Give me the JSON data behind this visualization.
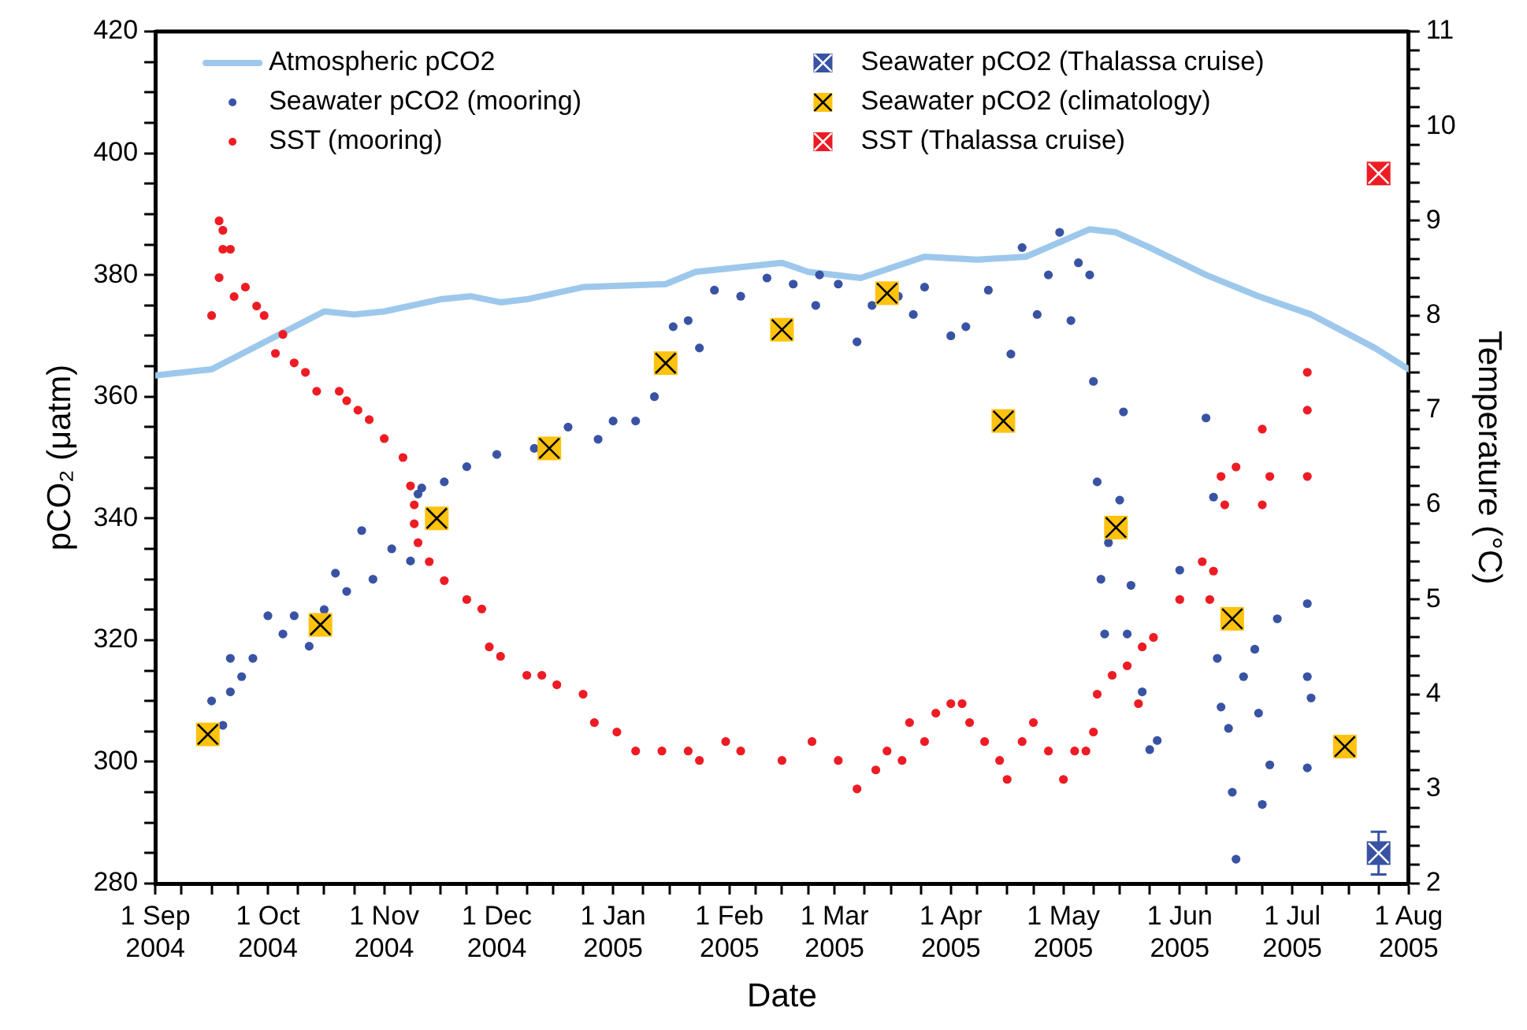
{
  "chart_data": {
    "type": "scatter",
    "xlabel": "Date",
    "ylabel": "pCO₂ (μatm)",
    "y2label": "Temperature (°C)",
    "legend": "top",
    "xlim": [
      "2004-09-01",
      "2005-08-01"
    ],
    "xticks": [
      {
        "value": "2004-09-01",
        "label": "1 Sep 2004"
      },
      {
        "value": "2004-09-08",
        "label": null
      },
      {
        "value": "2004-09-16",
        "label": null
      },
      {
        "value": "2004-09-23",
        "label": null
      },
      {
        "value": "2004-10-01",
        "label": "1 Oct 2004"
      },
      {
        "value": "2004-10-09",
        "label": null
      },
      {
        "value": "2004-10-16",
        "label": null
      },
      {
        "value": "2004-10-24",
        "label": null
      },
      {
        "value": "2004-11-01",
        "label": "1 Nov 2004"
      },
      {
        "value": "2004-11-08",
        "label": null
      },
      {
        "value": "2004-11-16",
        "label": null
      },
      {
        "value": "2004-11-23",
        "label": null
      },
      {
        "value": "2004-12-01",
        "label": "1 Dec 2004"
      },
      {
        "value": "2004-12-09",
        "label": null
      },
      {
        "value": "2004-12-16",
        "label": null
      },
      {
        "value": "2004-12-24",
        "label": null
      },
      {
        "value": "2005-01-01",
        "label": "1 Jan 2005"
      },
      {
        "value": "2005-01-09",
        "label": null
      },
      {
        "value": "2005-01-16",
        "label": null
      },
      {
        "value": "2005-01-24",
        "label": null
      },
      {
        "value": "2005-02-01",
        "label": "1 Feb 2005"
      },
      {
        "value": "2005-02-08",
        "label": null
      },
      {
        "value": "2005-02-15",
        "label": null
      },
      {
        "value": "2005-02-22",
        "label": null
      },
      {
        "value": "2005-03-01",
        "label": "1 Mar 2005"
      },
      {
        "value": "2005-03-09",
        "label": null
      },
      {
        "value": "2005-03-16",
        "label": null
      },
      {
        "value": "2005-03-24",
        "label": null
      },
      {
        "value": "2005-04-01",
        "label": "1 Apr 2005"
      },
      {
        "value": "2005-04-08",
        "label": null
      },
      {
        "value": "2005-04-16",
        "label": null
      },
      {
        "value": "2005-04-23",
        "label": null
      },
      {
        "value": "2005-05-01",
        "label": "1 May 2005"
      },
      {
        "value": "2005-05-09",
        "label": null
      },
      {
        "value": "2005-05-16",
        "label": null
      },
      {
        "value": "2005-05-24",
        "label": null
      },
      {
        "value": "2005-06-01",
        "label": "1 Jun 2005"
      },
      {
        "value": "2005-06-08",
        "label": null
      },
      {
        "value": "2005-06-16",
        "label": null
      },
      {
        "value": "2005-06-23",
        "label": null
      },
      {
        "value": "2005-07-01",
        "label": "1 Jul 2005"
      },
      {
        "value": "2005-07-09",
        "label": null
      },
      {
        "value": "2005-07-16",
        "label": null
      },
      {
        "value": "2005-07-24",
        "label": null
      },
      {
        "value": "2005-08-01",
        "label": "1 Aug 2005"
      }
    ],
    "ylim": [
      280,
      420
    ],
    "yticks": [
      280,
      {
        "value": 285,
        "label": null
      },
      {
        "value": 290,
        "label": null
      },
      {
        "value": 295,
        "label": null
      },
      300,
      {
        "value": 305,
        "label": null
      },
      {
        "value": 310,
        "label": null
      },
      {
        "value": 315,
        "label": null
      },
      320,
      {
        "value": 325,
        "label": null
      },
      {
        "value": 330,
        "label": null
      },
      {
        "value": 335,
        "label": null
      },
      340,
      {
        "value": 345,
        "label": null
      },
      {
        "value": 350,
        "label": null
      },
      {
        "value": 355,
        "label": null
      },
      360,
      {
        "value": 365,
        "label": null
      },
      {
        "value": 370,
        "label": null
      },
      {
        "value": 375,
        "label": null
      },
      380,
      {
        "value": 385,
        "label": null
      },
      {
        "value": 390,
        "label": null
      },
      {
        "value": 395,
        "label": null
      },
      400,
      {
        "value": 405,
        "label": null
      },
      {
        "value": 410,
        "label": null
      },
      {
        "value": 415,
        "label": null
      },
      420
    ],
    "y2lim": [
      2,
      11
    ],
    "y2ticks": [
      2,
      {
        "value": 2.2,
        "label": null
      },
      {
        "value": 2.4,
        "label": null
      },
      {
        "value": 2.6,
        "label": null
      },
      {
        "value": 2.8,
        "label": null
      },
      3,
      {
        "value": 3.2,
        "label": null
      },
      {
        "value": 3.4,
        "label": null
      },
      {
        "value": 3.6,
        "label": null
      },
      {
        "value": 3.8,
        "label": null
      },
      4,
      {
        "value": 4.2,
        "label": null
      },
      {
        "value": 4.4,
        "label": null
      },
      {
        "value": 4.6,
        "label": null
      },
      {
        "value": 4.8,
        "label": null
      },
      5,
      {
        "value": 5.2,
        "label": null
      },
      {
        "value": 5.4,
        "label": null
      },
      {
        "value": 5.6,
        "label": null
      },
      {
        "value": 5.8,
        "label": null
      },
      6,
      {
        "value": 6.2,
        "label": null
      },
      {
        "value": 6.4,
        "label": null
      },
      {
        "value": 6.6,
        "label": null
      },
      {
        "value": 6.8,
        "label": null
      },
      7,
      {
        "value": 7.2,
        "label": null
      },
      {
        "value": 7.4,
        "label": null
      },
      {
        "value": 7.6,
        "label": null
      },
      {
        "value": 7.8,
        "label": null
      },
      8,
      {
        "value": 8.2,
        "label": null
      },
      {
        "value": 8.4,
        "label": null
      },
      {
        "value": 8.6,
        "label": null
      },
      {
        "value": 8.8,
        "label": null
      },
      9,
      {
        "value": 9.2,
        "label": null
      },
      {
        "value": 9.4,
        "label": null
      },
      {
        "value": 9.6,
        "label": null
      },
      {
        "value": 9.8,
        "label": null
      },
      10,
      {
        "value": 10.2,
        "label": null
      },
      {
        "value": 10.4,
        "label": null
      },
      {
        "value": 10.6,
        "label": null
      },
      {
        "value": 10.8,
        "label": null
      },
      11
    ],
    "series": [
      {
        "name": "Atmospheric pCO2",
        "type": "line",
        "marker": "none",
        "color": "#9dc8ec",
        "x": [
          "2004-09-01",
          "2004-09-16",
          "2004-10-16",
          "2004-10-24",
          "2004-11-01",
          "2004-11-16",
          "2004-11-24",
          "2004-12-02",
          "2004-12-09",
          "2004-12-24",
          "2005-01-15",
          "2005-01-23",
          "2005-02-15",
          "2005-02-22",
          "2005-03-08",
          "2005-03-25",
          "2005-04-08",
          "2005-04-21",
          "2005-05-08",
          "2005-05-15",
          "2005-05-24",
          "2005-06-08",
          "2005-06-22",
          "2005-07-06",
          "2005-07-23",
          "2005-08-01"
        ],
        "values": [
          363.5,
          364.5,
          374,
          373.5,
          374,
          376,
          376.5,
          375.5,
          376,
          378,
          378.5,
          380.5,
          382,
          380.5,
          379.5,
          383,
          382.5,
          383,
          387.5,
          387,
          384.5,
          380,
          376.5,
          373.5,
          368,
          364.5
        ]
      },
      {
        "name": "Seawater pCO2 (mooring)",
        "marker": "circle",
        "color": "#3953a4",
        "x": [
          "2004-09-16",
          "2004-09-19",
          "2004-09-21",
          "2004-09-21",
          "2004-09-24",
          "2004-09-27",
          "2004-10-01",
          "2004-10-05",
          "2004-10-08",
          "2004-10-12",
          "2004-10-16",
          "2004-10-19",
          "2004-10-22",
          "2004-10-26",
          "2004-10-29",
          "2004-11-03",
          "2004-11-08",
          "2004-11-10",
          "2004-11-11",
          "2004-11-17",
          "2004-11-23",
          "2004-12-01",
          "2004-12-11",
          "2004-12-20",
          "2004-12-28",
          "2005-01-01",
          "2005-01-07",
          "2005-01-12",
          "2005-01-17",
          "2005-01-21",
          "2005-01-24",
          "2005-01-28",
          "2005-02-04",
          "2005-02-11",
          "2005-02-18",
          "2005-02-24",
          "2005-02-25",
          "2005-03-02",
          "2005-03-07",
          "2005-03-11",
          "2005-03-18",
          "2005-03-22",
          "2005-03-25",
          "2005-04-01",
          "2005-04-05",
          "2005-04-11",
          "2005-04-17",
          "2005-04-20",
          "2005-04-24",
          "2005-04-27",
          "2005-04-30",
          "2005-05-03",
          "2005-05-05",
          "2005-05-08",
          "2005-05-09",
          "2005-05-10",
          "2005-05-11",
          "2005-05-12",
          "2005-05-13",
          "2005-05-16",
          "2005-05-17",
          "2005-05-18",
          "2005-05-19",
          "2005-05-22",
          "2005-05-24",
          "2005-05-26",
          "2005-06-01",
          "2005-06-08",
          "2005-06-10",
          "2005-06-11",
          "2005-06-12",
          "2005-06-14",
          "2005-06-15",
          "2005-06-16",
          "2005-06-18",
          "2005-06-21",
          "2005-06-22",
          "2005-06-23",
          "2005-06-25",
          "2005-06-27",
          "2005-07-05",
          "2005-07-05",
          "2005-07-05",
          "2005-07-06"
        ],
        "values": [
          310,
          306,
          311.5,
          317,
          314,
          317,
          324,
          321,
          324,
          319,
          325,
          331,
          328,
          338,
          330,
          335,
          333,
          344,
          345,
          346,
          348.5,
          350.5,
          351.5,
          355,
          353,
          356,
          356,
          360,
          371.5,
          372.5,
          368,
          377.5,
          376.5,
          379.5,
          378.5,
          375,
          380,
          378.5,
          369,
          375,
          376.5,
          373.5,
          378,
          370,
          371.5,
          377.5,
          367,
          384.5,
          373.5,
          380,
          387,
          372.5,
          382,
          380,
          362.5,
          346,
          330,
          321,
          336,
          343,
          357.5,
          321,
          329,
          311.5,
          302,
          303.5,
          331.5,
          356.5,
          343.5,
          317,
          309,
          305.5,
          295,
          284,
          314,
          318.5,
          308,
          293,
          299.5,
          323.5,
          314,
          326,
          299,
          310.5
        ]
      },
      {
        "name": "SST (mooring)",
        "marker": "circle",
        "axis": "y2",
        "color": "#ed1c24",
        "x": [
          "2004-09-16",
          "2004-09-18",
          "2004-09-18",
          "2004-09-19",
          "2004-09-19",
          "2004-09-21",
          "2004-09-22",
          "2004-09-25",
          "2004-09-28",
          "2004-09-30",
          "2004-10-03",
          "2004-10-05",
          "2004-10-08",
          "2004-10-11",
          "2004-10-14",
          "2004-10-20",
          "2004-10-22",
          "2004-10-25",
          "2004-10-28",
          "2004-11-01",
          "2004-11-06",
          "2004-11-08",
          "2004-11-09",
          "2004-11-09",
          "2004-11-10",
          "2004-11-13",
          "2004-11-17",
          "2004-11-23",
          "2004-11-27",
          "2004-11-29",
          "2004-12-02",
          "2004-12-09",
          "2004-12-13",
          "2004-12-17",
          "2004-12-24",
          "2004-12-27",
          "2005-01-02",
          "2005-01-07",
          "2005-01-14",
          "2005-01-21",
          "2005-01-24",
          "2005-01-31",
          "2005-02-04",
          "2005-02-15",
          "2005-02-23",
          "2005-03-02",
          "2005-03-07",
          "2005-03-12",
          "2005-03-15",
          "2005-03-19",
          "2005-03-21",
          "2005-03-25",
          "2005-03-28",
          "2005-04-01",
          "2005-04-04",
          "2005-04-06",
          "2005-04-10",
          "2005-04-14",
          "2005-04-16",
          "2005-04-20",
          "2005-04-23",
          "2005-04-27",
          "2005-05-01",
          "2005-05-04",
          "2005-05-07",
          "2005-05-09",
          "2005-05-10",
          "2005-05-14",
          "2005-05-18",
          "2005-05-21",
          "2005-05-22",
          "2005-05-25",
          "2005-06-01",
          "2005-06-07",
          "2005-06-09",
          "2005-06-10",
          "2005-06-12",
          "2005-06-13",
          "2005-06-16",
          "2005-06-23",
          "2005-06-23",
          "2005-06-25",
          "2005-07-05",
          "2005-07-05",
          "2005-07-05"
        ],
        "values": [
          8.0,
          9.0,
          8.4,
          8.9,
          8.7,
          8.7,
          8.2,
          8.3,
          8.1,
          8.0,
          7.6,
          7.8,
          7.5,
          7.4,
          7.2,
          7.2,
          7.1,
          7.0,
          6.9,
          6.7,
          6.5,
          6.2,
          6.0,
          5.8,
          5.6,
          5.4,
          5.2,
          5.0,
          4.9,
          4.5,
          4.4,
          4.2,
          4.2,
          4.1,
          4.0,
          3.7,
          3.6,
          3.4,
          3.4,
          3.4,
          3.3,
          3.5,
          3.4,
          3.3,
          3.5,
          3.3,
          3.0,
          3.2,
          3.4,
          3.3,
          3.7,
          3.5,
          3.8,
          3.9,
          3.9,
          3.7,
          3.5,
          3.3,
          3.1,
          3.5,
          3.7,
          3.4,
          3.1,
          3.4,
          3.4,
          3.6,
          4.0,
          4.2,
          4.3,
          3.9,
          4.5,
          4.6,
          5.0,
          5.4,
          5.0,
          5.3,
          6.3,
          6.0,
          6.4,
          6.8,
          6.0,
          6.3,
          6.3,
          7.4,
          7.0
        ]
      },
      {
        "name": "Seawater pCO2 (Thalassa cruise)",
        "marker": "square",
        "color": "#3953a4",
        "x": [
          "2005-07-24"
        ],
        "values": [
          285
        ],
        "errors": [
          3.5
        ]
      },
      {
        "name": "Seawater pCO2 (climatology)",
        "marker": "square",
        "color": "#ffc20e",
        "x": [
          "2004-09-15",
          "2004-10-15",
          "2004-11-15",
          "2004-12-15",
          "2005-01-15",
          "2005-02-15",
          "2005-03-15",
          "2005-04-15",
          "2005-05-15",
          "2005-06-15",
          "2005-07-15"
        ],
        "values": [
          304.5,
          322.5,
          340,
          351.5,
          365.5,
          371,
          377,
          356,
          338.5,
          323.5,
          302.5
        ]
      },
      {
        "name": "SST (Thalassa cruise)",
        "marker": "square",
        "axis": "y2",
        "color": "#ed1c24",
        "x": [
          "2005-07-24"
        ],
        "values": [
          9.5
        ]
      }
    ]
  }
}
